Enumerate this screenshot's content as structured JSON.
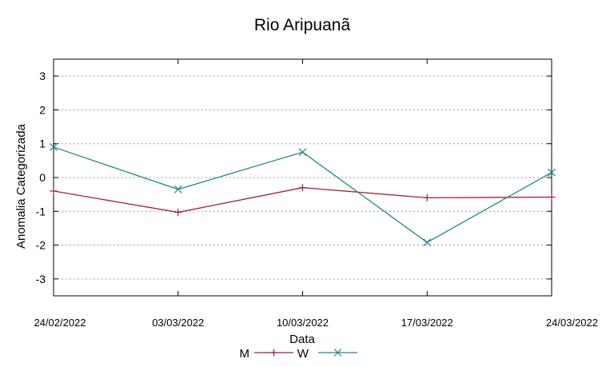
{
  "chart_data": {
    "type": "line",
    "title": "Rio Aripuanã",
    "xlabel": "Data",
    "ylabel": "Anomalia Categorizada",
    "categories": [
      "24/02/2022",
      "03/03/2022",
      "10/03/2022",
      "17/03/2022",
      "24/03/2022"
    ],
    "yticks": [
      "3",
      "2",
      "1",
      "0",
      "-1",
      "-2",
      "-3"
    ],
    "ylim": [
      -3.5,
      3.5
    ],
    "grid": "horizontal dashed",
    "legend_position": "bottom-center",
    "series": [
      {
        "name": "M",
        "values": [
          -0.4,
          -1.03,
          -0.3,
          -0.6,
          -0.58
        ],
        "color": "#a0222e",
        "marker": "plus"
      },
      {
        "name": "W",
        "values": [
          0.9,
          -0.35,
          0.75,
          -1.92,
          0.15
        ],
        "color": "#1f8a8a",
        "marker": "cross"
      }
    ]
  }
}
